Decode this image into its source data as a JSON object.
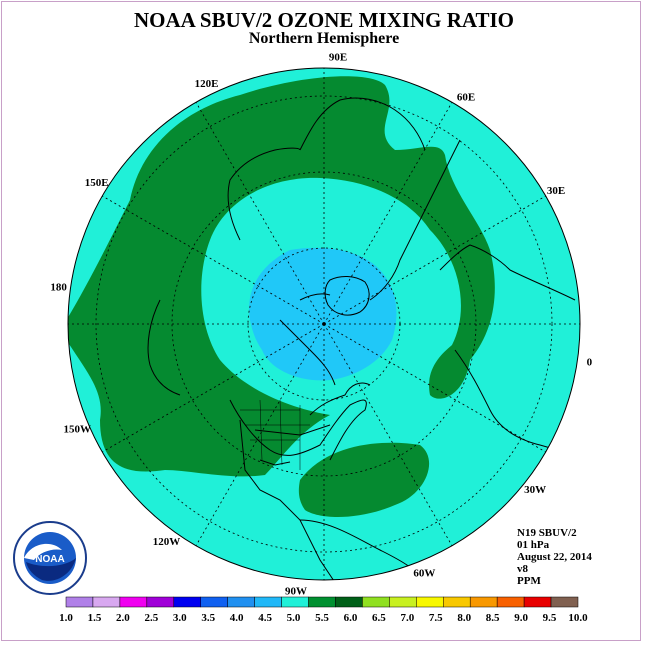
{
  "title": "NOAA SBUV/2 OZONE MIXING RATIO",
  "subtitle": "Northern Hemisphere",
  "longitude_labels": [
    {
      "text": "90E"
    },
    {
      "text": "60E"
    },
    {
      "text": "30E"
    },
    {
      "text": "0"
    },
    {
      "text": "30W"
    },
    {
      "text": "60W"
    },
    {
      "text": "90W"
    },
    {
      "text": "120W"
    },
    {
      "text": "150W"
    },
    {
      "text": "180"
    },
    {
      "text": "150E"
    },
    {
      "text": "120E"
    }
  ],
  "info": {
    "satellite": "N19 SBUV/2",
    "level": "01 hPa",
    "date": "August 22, 2014",
    "version": "v8",
    "units": "PPM"
  },
  "logo": {
    "text": "NOAA",
    "icon": "noaa-logo-icon"
  },
  "colorbar": {
    "ticks": [
      "1.0",
      "1.5",
      "2.0",
      "2.5",
      "3.0",
      "3.5",
      "4.0",
      "4.5",
      "5.0",
      "5.5",
      "6.0",
      "6.5",
      "7.0",
      "7.5",
      "8.0",
      "8.5",
      "9.0",
      "9.5",
      "10.0"
    ],
    "colors": [
      "#b080e8",
      "#d8a8f0",
      "#f000f0",
      "#a000d8",
      "#0000f0",
      "#1060f0",
      "#2090f0",
      "#20b8f8",
      "#20f0d8",
      "#009030",
      "#006018",
      "#90e020",
      "#c8f020",
      "#f8f800",
      "#f8c800",
      "#f89800",
      "#f86000",
      "#e80000",
      "#806050"
    ]
  },
  "fields": {
    "ocean": "#20f0d8",
    "polar": "#20c8f8",
    "ring": "#058a30"
  }
}
